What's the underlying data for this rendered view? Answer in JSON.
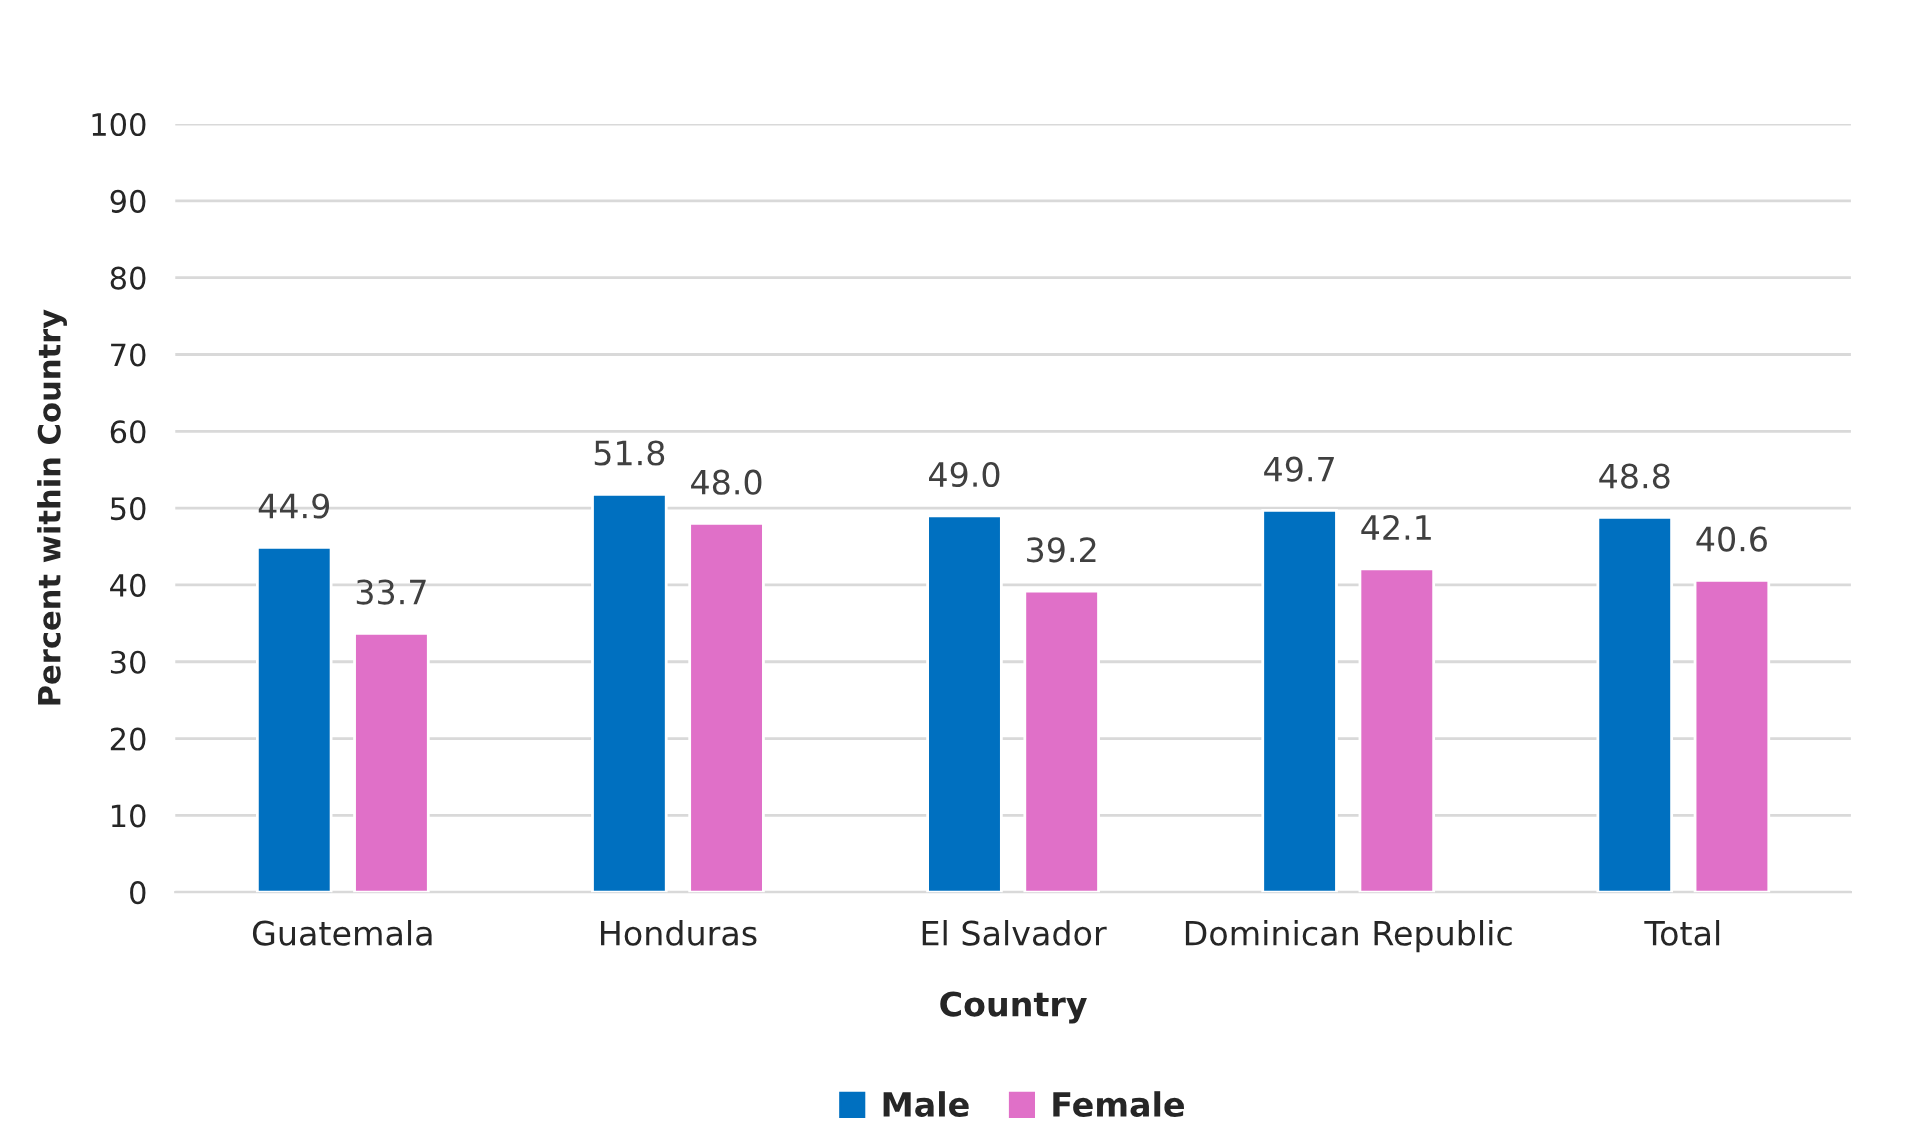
{
  "chart_data": {
    "type": "bar",
    "xlabel": "Country",
    "ylabel": "Percent within Country",
    "categories": [
      "Guatemala",
      "Honduras",
      "El Salvador",
      "Dominican Republic",
      "Total"
    ],
    "series": [
      {
        "name": "Male",
        "color": "#0070c0",
        "values": [
          44.9,
          51.8,
          49.0,
          49.7,
          48.8
        ],
        "value_labels": [
          "44.9",
          "51.8",
          "49.0",
          "49.7",
          "48.8"
        ]
      },
      {
        "name": "Female",
        "color": "#e070c8",
        "values": [
          33.7,
          48.0,
          39.2,
          42.1,
          40.6
        ],
        "value_labels": [
          "33.7",
          "48.0",
          "39.2",
          "42.1",
          "40.6"
        ]
      }
    ],
    "ylim": [
      0,
      100
    ],
    "yticks": [
      0,
      10,
      20,
      30,
      40,
      50,
      60,
      70,
      80,
      90,
      100
    ],
    "grid": "y",
    "legend": "bottom"
  }
}
